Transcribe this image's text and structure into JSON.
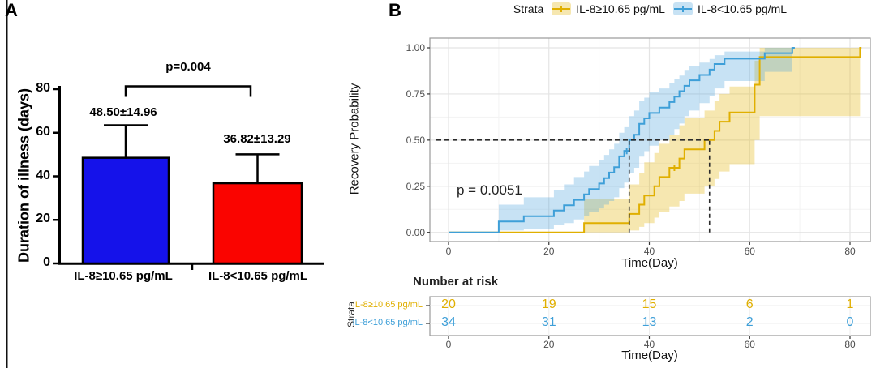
{
  "figure": {
    "background": "#ffffff",
    "left_border_color": "#111111"
  },
  "panel_a": {
    "label": "A"
  },
  "panel_b": {
    "label": "B",
    "legend_title": "Strata"
  },
  "chart_data": [
    {
      "type": "bar",
      "title": "",
      "xlabel": "",
      "ylabel": "Duration of illness (days)",
      "ylim": [
        0,
        80
      ],
      "y_ticks": [
        0,
        20,
        40,
        60,
        80
      ],
      "grid": false,
      "categories": [
        "IL-8≥10.65 pg/mL",
        "IL-8<10.65 pg/mL"
      ],
      "values": [
        48.5,
        36.82
      ],
      "errors": [
        14.96,
        13.29
      ],
      "value_labels": [
        "48.50±14.96",
        "36.82±13.29"
      ],
      "bar_colors": [
        "#1512EA",
        "#FA0400"
      ],
      "bar_border_color": "#000000",
      "significance": {
        "label": "p=0.004",
        "between": [
          0,
          1
        ]
      }
    },
    {
      "type": "line",
      "subtype": "kaplan-meier-step",
      "title": "",
      "xlabel": "Time(Day)",
      "ylabel": "Recovery Probability",
      "xlim": [
        0,
        82
      ],
      "ylim": [
        0,
        1
      ],
      "x_ticks": [
        0,
        20,
        40,
        60,
        80
      ],
      "y_tick_labels": [
        "1.00",
        "0.75",
        "0.50",
        "0.25",
        "0.00"
      ],
      "y_ticks": [
        1.0,
        0.75,
        0.5,
        0.25,
        0.0
      ],
      "grid": true,
      "legend_position": "top",
      "pvalue": "p = 0.0051",
      "median_lines": {
        "probability": 0.5,
        "days": [
          36,
          52
        ]
      },
      "series": [
        {
          "name": "IL-8≥10.65 pg/mL",
          "color": "#E0AF00",
          "band_color": "rgba(229,185,30,0.35)",
          "n": 20,
          "end_day": 82.3,
          "censor_marks": [
            [
              45,
              0.35
            ]
          ],
          "steps": [
            [
              0,
              0,
              0,
              0
            ],
            [
              27,
              0.05,
              0.0,
              0.18
            ],
            [
              36,
              0.1,
              0.01,
              0.26
            ],
            [
              38,
              0.15,
              0.03,
              0.32
            ],
            [
              39,
              0.2,
              0.05,
              0.38
            ],
            [
              41,
              0.25,
              0.08,
              0.43
            ],
            [
              42,
              0.3,
              0.11,
              0.48
            ],
            [
              44,
              0.35,
              0.14,
              0.53
            ],
            [
              46,
              0.4,
              0.17,
              0.58
            ],
            [
              47,
              0.45,
              0.21,
              0.62
            ],
            [
              51,
              0.5,
              0.25,
              0.66
            ],
            [
              53,
              0.55,
              0.29,
              0.71
            ],
            [
              54,
              0.6,
              0.33,
              0.75
            ],
            [
              56,
              0.65,
              0.37,
              0.79
            ],
            [
              61,
              0.8,
              0.5,
              0.93
            ],
            [
              62,
              0.95,
              0.63,
              1.0
            ],
            [
              82,
              1.0,
              1.0,
              1.0
            ]
          ]
        },
        {
          "name": "IL-8<10.65 pg/mL",
          "color": "#3E9FD8",
          "band_color": "rgba(80,165,220,0.32)",
          "n": 34,
          "end_day": 69,
          "censor_marks": [
            [
              35.5,
              0.441
            ]
          ],
          "steps": [
            [
              0,
              0,
              0,
              0
            ],
            [
              10,
              0.059,
              0.01,
              0.15
            ],
            [
              15,
              0.088,
              0.02,
              0.19
            ],
            [
              21,
              0.118,
              0.04,
              0.23
            ],
            [
              23,
              0.147,
              0.05,
              0.26
            ],
            [
              25,
              0.176,
              0.07,
              0.3
            ],
            [
              27,
              0.206,
              0.09,
              0.33
            ],
            [
              28,
              0.235,
              0.11,
              0.36
            ],
            [
              30,
              0.265,
              0.13,
              0.39
            ],
            [
              31,
              0.294,
              0.15,
              0.42
            ],
            [
              32,
              0.324,
              0.17,
              0.45
            ],
            [
              33,
              0.353,
              0.19,
              0.48
            ],
            [
              34,
              0.412,
              0.24,
              0.54
            ],
            [
              35,
              0.441,
              0.27,
              0.57
            ],
            [
              36,
              0.5,
              0.32,
              0.63
            ],
            [
              37,
              0.529,
              0.35,
              0.66
            ],
            [
              38,
              0.588,
              0.41,
              0.71
            ],
            [
              39,
              0.618,
              0.44,
              0.73
            ],
            [
              40,
              0.647,
              0.47,
              0.76
            ],
            [
              42,
              0.676,
              0.5,
              0.78
            ],
            [
              44,
              0.706,
              0.53,
              0.81
            ],
            [
              45,
              0.735,
              0.56,
              0.83
            ],
            [
              46,
              0.765,
              0.59,
              0.85
            ],
            [
              47,
              0.794,
              0.63,
              0.88
            ],
            [
              48,
              0.824,
              0.66,
              0.9
            ],
            [
              50,
              0.853,
              0.7,
              0.92
            ],
            [
              52,
              0.882,
              0.74,
              0.94
            ],
            [
              53,
              0.912,
              0.78,
              0.96
            ],
            [
              55,
              0.941,
              0.82,
              0.98
            ],
            [
              63,
              0.971,
              0.87,
              1.0
            ],
            [
              68.5,
              1.0,
              1.0,
              1.0
            ]
          ]
        }
      ],
      "risk_table": {
        "title": "Number at risk",
        "strata_axis_label": "Strata",
        "xlabel": "Time(Day)",
        "times": [
          0,
          20,
          40,
          60,
          80
        ],
        "rows": [
          {
            "label": "IL-8≥10.65 pg/mL",
            "color": "#E0AF00",
            "counts": [
              20,
              19,
              15,
              6,
              1
            ]
          },
          {
            "label": "IL-8<10.65 pg/mL",
            "color": "#3E9FD8",
            "counts": [
              34,
              31,
              13,
              2,
              0
            ]
          }
        ]
      }
    }
  ]
}
